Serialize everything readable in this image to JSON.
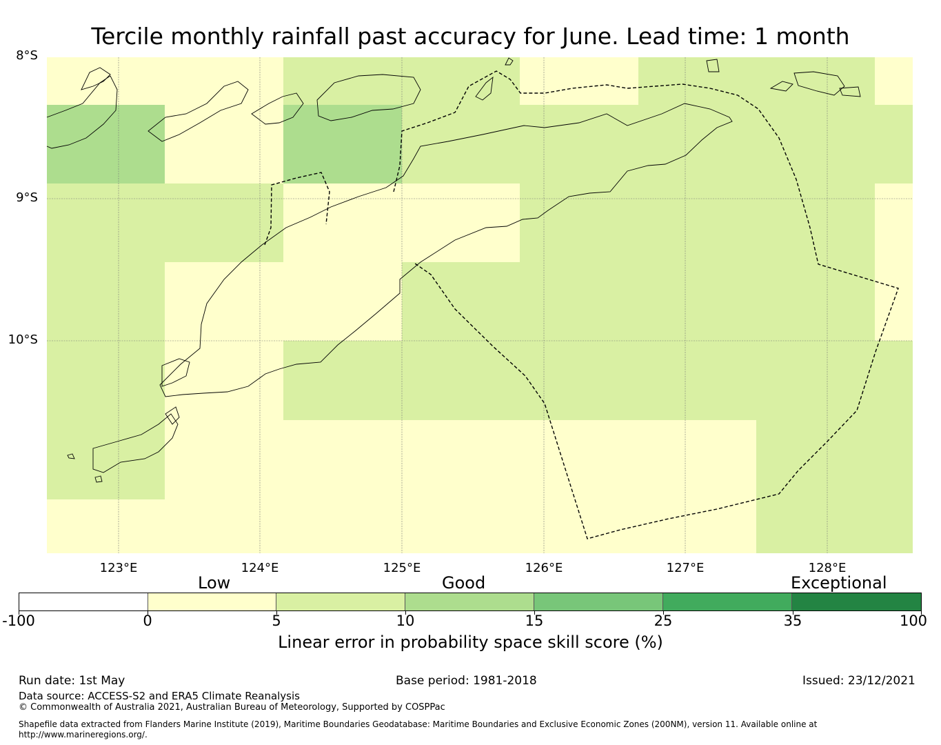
{
  "title": "Tercile monthly rainfall past accuracy for June. Lead time: 1 month",
  "map": {
    "lat_labels": [
      "8°S",
      "9°S",
      "10°S"
    ],
    "lon_labels": [
      "123°E",
      "124°E",
      "125°E",
      "126°E",
      "127°E",
      "128°E"
    ],
    "category_colors": {
      "low": "#ffffcc",
      "good5": "#d9f0a3",
      "good10": "#addd8e"
    }
  },
  "colorbar": {
    "categories": [
      "Low",
      "Good",
      "Exceptional"
    ],
    "ticks": [
      "-100",
      "0",
      "5",
      "10",
      "15",
      "25",
      "35",
      "100"
    ],
    "colors": [
      "#ffffff",
      "#ffffcc",
      "#d9f0a3",
      "#addd8e",
      "#78c679",
      "#41ab5d",
      "#238443"
    ],
    "label": "Linear error in probability space skill score (%)"
  },
  "footer": {
    "run_date": "Run date: 1st May",
    "base_period": "Base period: 1981-2018",
    "issued": "Issued: 23/12/2021",
    "data_source": "Data source: ACCESS-S2 and ERA5 Climate Reanalysis",
    "copyright": "© Commonwealth of Australia 2021, Australian Bureau of Meteorology, Supported by COSPPac",
    "shapefile_note": "Shapefile data extracted from Flanders Marine Institute (2019), Maritime Boundaries Geodatabase: Maritime Boundaries and Exclusive Economic Zones (200NM), version 11. Available online at http://www.marineregions.org/."
  }
}
